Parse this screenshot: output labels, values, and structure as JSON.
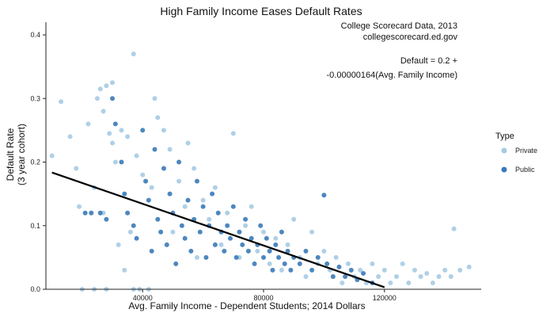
{
  "chart_data": {
    "type": "scatter",
    "title": "High Family Income Eases Default Rates",
    "xlabel": "Avg. Family Income - Dependent Students; 2014 Dollars",
    "ylabel_line1": "Default Rate",
    "ylabel_line2": "(3 year cohort)",
    "xlim": [
      8000,
      152000
    ],
    "ylim": [
      0,
      0.42
    ],
    "x_ticks": [
      40000,
      80000,
      120000
    ],
    "x_tick_labels": [
      "40000",
      "80000",
      "120000"
    ],
    "y_ticks": [
      0.0,
      0.1,
      0.2,
      0.3,
      0.4
    ],
    "y_tick_labels": [
      "0.0",
      "0.1",
      "0.2",
      "0.3",
      "0.4"
    ],
    "grid": false,
    "annotations": [
      "College Scorecard Data, 2013",
      "collegescorecard.ed.gov",
      "Default = 0.2 +",
      "-0.00000164(Avg. Family Income)"
    ],
    "legend": {
      "title": "Type",
      "placement": "right"
    },
    "series": [
      {
        "name": "Private",
        "color": "#a6cbe3",
        "points": [
          [
            10000,
            0.21
          ],
          [
            13000,
            0.295
          ],
          [
            16000,
            0.24
          ],
          [
            18000,
            0.19
          ],
          [
            19000,
            0.13
          ],
          [
            20000,
            0.0
          ],
          [
            22000,
            0.26
          ],
          [
            24000,
            0.0
          ],
          [
            24000,
            0.16
          ],
          [
            25000,
            0.3
          ],
          [
            26000,
            0.315
          ],
          [
            28000,
            0.32
          ],
          [
            27000,
            0.28
          ],
          [
            27000,
            0.12
          ],
          [
            28000,
            0.0
          ],
          [
            29000,
            0.245
          ],
          [
            30000,
            0.325
          ],
          [
            30000,
            0.23
          ],
          [
            31000,
            0.2
          ],
          [
            32000,
            0.07
          ],
          [
            33000,
            0.25
          ],
          [
            34000,
            0.03
          ],
          [
            35000,
            0.24
          ],
          [
            36000,
            0.09
          ],
          [
            37000,
            0.0
          ],
          [
            37000,
            0.37
          ],
          [
            38000,
            0.21
          ],
          [
            39000,
            0.0
          ],
          [
            40000,
            0.18
          ],
          [
            42000,
            0.0
          ],
          [
            43000,
            0.16
          ],
          [
            44000,
            0.3
          ],
          [
            45000,
            0.27
          ],
          [
            47000,
            0.25
          ],
          [
            49000,
            0.22
          ],
          [
            50000,
            0.09
          ],
          [
            52000,
            0.17
          ],
          [
            54000,
            0.13
          ],
          [
            55000,
            0.23
          ],
          [
            57000,
            0.19
          ],
          [
            58000,
            0.05
          ],
          [
            60000,
            0.14
          ],
          [
            62000,
            0.11
          ],
          [
            64000,
            0.16
          ],
          [
            66000,
            0.07
          ],
          [
            68000,
            0.12
          ],
          [
            70000,
            0.245
          ],
          [
            72000,
            0.05
          ],
          [
            74000,
            0.1
          ],
          [
            76000,
            0.13
          ],
          [
            78000,
            0.06
          ],
          [
            80000,
            0.09
          ],
          [
            82000,
            0.04
          ],
          [
            84000,
            0.08
          ],
          [
            86000,
            0.03
          ],
          [
            88000,
            0.07
          ],
          [
            90000,
            0.11
          ],
          [
            92000,
            0.05
          ],
          [
            94000,
            0.02
          ],
          [
            96000,
            0.09
          ],
          [
            98000,
            0.04
          ],
          [
            100000,
            0.06
          ],
          [
            102000,
            0.03
          ],
          [
            104000,
            0.05
          ],
          [
            106000,
            0.01
          ],
          [
            108000,
            0.04
          ],
          [
            110000,
            0.02
          ],
          [
            112000,
            0.03
          ],
          [
            114000,
            0.01
          ],
          [
            116000,
            0.04
          ],
          [
            118000,
            0.02
          ],
          [
            120000,
            0.03
          ],
          [
            122000,
            0.01
          ],
          [
            124000,
            0.02
          ],
          [
            126000,
            0.04
          ],
          [
            128000,
            0.01
          ],
          [
            130000,
            0.03
          ],
          [
            132000,
            0.02
          ],
          [
            134000,
            0.025
          ],
          [
            136000,
            0.01
          ],
          [
            138000,
            0.02
          ],
          [
            140000,
            0.03
          ],
          [
            142000,
            0.02
          ],
          [
            143000,
            0.095
          ],
          [
            145000,
            0.03
          ],
          [
            148000,
            0.035
          ]
        ]
      },
      {
        "name": "Public",
        "color": "#3a7ab8",
        "points": [
          [
            21000,
            0.12
          ],
          [
            23000,
            0.12
          ],
          [
            26000,
            0.12
          ],
          [
            28000,
            0.11
          ],
          [
            30000,
            0.3
          ],
          [
            31000,
            0.26
          ],
          [
            33000,
            0.2
          ],
          [
            34000,
            0.15
          ],
          [
            35000,
            0.12
          ],
          [
            37000,
            0.1
          ],
          [
            38000,
            0.08
          ],
          [
            40000,
            0.25
          ],
          [
            41000,
            0.17
          ],
          [
            42000,
            0.14
          ],
          [
            43000,
            0.06
          ],
          [
            44000,
            0.22
          ],
          [
            45000,
            0.11
          ],
          [
            46000,
            0.09
          ],
          [
            47000,
            0.19
          ],
          [
            48000,
            0.07
          ],
          [
            49000,
            0.15
          ],
          [
            50000,
            0.12
          ],
          [
            51000,
            0.04
          ],
          [
            52000,
            0.2
          ],
          [
            53000,
            0.1
          ],
          [
            54000,
            0.08
          ],
          [
            55000,
            0.14
          ],
          [
            56000,
            0.06
          ],
          [
            57000,
            0.11
          ],
          [
            58000,
            0.17
          ],
          [
            59000,
            0.09
          ],
          [
            60000,
            0.13
          ],
          [
            61000,
            0.05
          ],
          [
            62000,
            0.1
          ],
          [
            63000,
            0.15
          ],
          [
            64000,
            0.07
          ],
          [
            65000,
            0.12
          ],
          [
            66000,
            0.09
          ],
          [
            67000,
            0.06
          ],
          [
            68000,
            0.1
          ],
          [
            69000,
            0.08
          ],
          [
            70000,
            0.13
          ],
          [
            71000,
            0.05
          ],
          [
            72000,
            0.09
          ],
          [
            73000,
            0.07
          ],
          [
            74000,
            0.11
          ],
          [
            75000,
            0.06
          ],
          [
            76000,
            0.08
          ],
          [
            77000,
            0.04
          ],
          [
            78000,
            0.07
          ],
          [
            79000,
            0.1
          ],
          [
            80000,
            0.05
          ],
          [
            81000,
            0.08
          ],
          [
            82000,
            0.06
          ],
          [
            83000,
            0.03
          ],
          [
            84000,
            0.07
          ],
          [
            85000,
            0.05
          ],
          [
            86000,
            0.09
          ],
          [
            87000,
            0.04
          ],
          [
            88000,
            0.06
          ],
          [
            89000,
            0.03
          ],
          [
            90000,
            0.05
          ],
          [
            92000,
            0.04
          ],
          [
            94000,
            0.06
          ],
          [
            96000,
            0.03
          ],
          [
            98000,
            0.05
          ],
          [
            100000,
            0.148
          ],
          [
            101000,
            0.04
          ],
          [
            103000,
            0.02
          ],
          [
            105000,
            0.035
          ],
          [
            107000,
            0.02
          ],
          [
            109000,
            0.03
          ],
          [
            111000,
            0.015
          ],
          [
            113000,
            0.025
          ],
          [
            116000,
            0.01
          ]
        ]
      }
    ],
    "fit_line": {
      "intercept": 0.2,
      "slope": -1.64e-06,
      "x_range": [
        10000,
        120000
      ],
      "color": "#000000"
    }
  }
}
